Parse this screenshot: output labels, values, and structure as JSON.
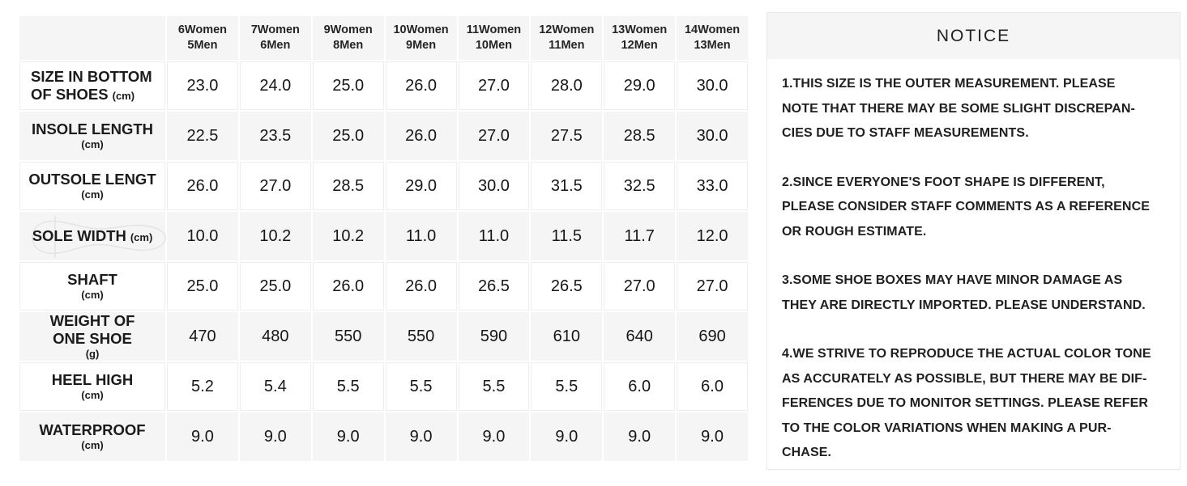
{
  "colors": {
    "row_alt_bg": "#f5f5f5",
    "panel_border": "#e9e9e9",
    "text": "#1c1c1c",
    "sole_outline": "#e3e3e3"
  },
  "size_chart": {
    "corner_label": "",
    "columns": [
      {
        "women": "6Women",
        "men": "5Men"
      },
      {
        "women": "7Women",
        "men": "6Men"
      },
      {
        "women": "9Women",
        "men": "8Men"
      },
      {
        "women": "10Women",
        "men": "9Men"
      },
      {
        "women": "11Women",
        "men": "10Men"
      },
      {
        "women": "12Women",
        "men": "11Men"
      },
      {
        "women": "13Women",
        "men": "12Men"
      },
      {
        "women": "14Women",
        "men": "13Men"
      }
    ],
    "rows": [
      {
        "id": "size-in-bottom-of-shoes",
        "label_lines": [
          "SIZE IN BOTTOM",
          "OF SHOES"
        ],
        "unit": "(cm)",
        "unit_inline": true,
        "align": "left",
        "sole_outline": false,
        "values": [
          "23.0",
          "24.0",
          "25.0",
          "26.0",
          "27.0",
          "28.0",
          "29.0",
          "30.0"
        ]
      },
      {
        "id": "insole-length",
        "label_lines": [
          "INSOLE LENGTH"
        ],
        "unit": "(cm)",
        "unit_inline": false,
        "align": "center",
        "sole_outline": false,
        "values": [
          "22.5",
          "23.5",
          "25.0",
          "26.0",
          "27.0",
          "27.5",
          "28.5",
          "30.0"
        ]
      },
      {
        "id": "outsole-lengt",
        "label_lines": [
          "OUTSOLE LENGT"
        ],
        "unit": "(cm)",
        "unit_inline": false,
        "align": "center",
        "sole_outline": false,
        "values": [
          "26.0",
          "27.0",
          "28.5",
          "29.0",
          "30.0",
          "31.5",
          "32.5",
          "33.0"
        ]
      },
      {
        "id": "sole-width",
        "label_lines": [
          "SOLE WIDTH"
        ],
        "unit": "(cm)",
        "unit_inline": true,
        "align": "center",
        "sole_outline": true,
        "values": [
          "10.0",
          "10.2",
          "10.2",
          "11.0",
          "11.0",
          "11.5",
          "11.7",
          "12.0"
        ]
      },
      {
        "id": "shaft",
        "label_lines": [
          "SHAFT"
        ],
        "unit": "(cm)",
        "unit_inline": false,
        "align": "center",
        "sole_outline": false,
        "values": [
          "25.0",
          "25.0",
          "26.0",
          "26.0",
          "26.5",
          "26.5",
          "27.0",
          "27.0"
        ]
      },
      {
        "id": "weight-of-one-shoe",
        "label_lines": [
          "WEIGHT OF",
          "ONE SHOE"
        ],
        "unit": "(g)",
        "unit_inline": false,
        "align": "center",
        "sole_outline": false,
        "values": [
          "470",
          "480",
          "550",
          "550",
          "590",
          "610",
          "640",
          "690"
        ]
      },
      {
        "id": "heel-high",
        "label_lines": [
          "HEEL HIGH"
        ],
        "unit": "(cm)",
        "unit_inline": false,
        "align": "center",
        "sole_outline": false,
        "values": [
          "5.2",
          "5.4",
          "5.5",
          "5.5",
          "5.5",
          "5.5",
          "6.0",
          "6.0"
        ]
      },
      {
        "id": "waterproof",
        "label_lines": [
          "WATERPROOF"
        ],
        "unit": "(cm)",
        "unit_inline": false,
        "align": "center",
        "sole_outline": false,
        "values": [
          "9.0",
          "9.0",
          "9.0",
          "9.0",
          "9.0",
          "9.0",
          "9.0",
          "9.0"
        ]
      }
    ]
  },
  "notice": {
    "title": "NOTICE",
    "paragraphs": [
      [
        "1.THIS SIZE IS THE OUTER MEASUREMENT. PLEASE",
        "NOTE THAT THERE MAY BE SOME SLIGHT DISCREPAN-",
        "CIES DUE TO STAFF MEASUREMENTS."
      ],
      [
        "2.SINCE EVERYONE'S FOOT SHAPE IS DIFFERENT,",
        "PLEASE CONSIDER STAFF COMMENTS AS A REFERENCE",
        "OR ROUGH ESTIMATE."
      ],
      [
        "3.SOME SHOE BOXES MAY HAVE MINOR DAMAGE AS",
        "THEY ARE DIRECTLY IMPORTED. PLEASE UNDERSTAND."
      ],
      [
        "4.WE STRIVE TO REPRODUCE THE ACTUAL COLOR TONE",
        "AS ACCURATELY AS POSSIBLE, BUT THERE MAY BE DIF-",
        "FERENCES DUE TO MONITOR SETTINGS. PLEASE REFER",
        "TO THE COLOR VARIATIONS WHEN MAKING A PUR-",
        "CHASE."
      ]
    ]
  }
}
